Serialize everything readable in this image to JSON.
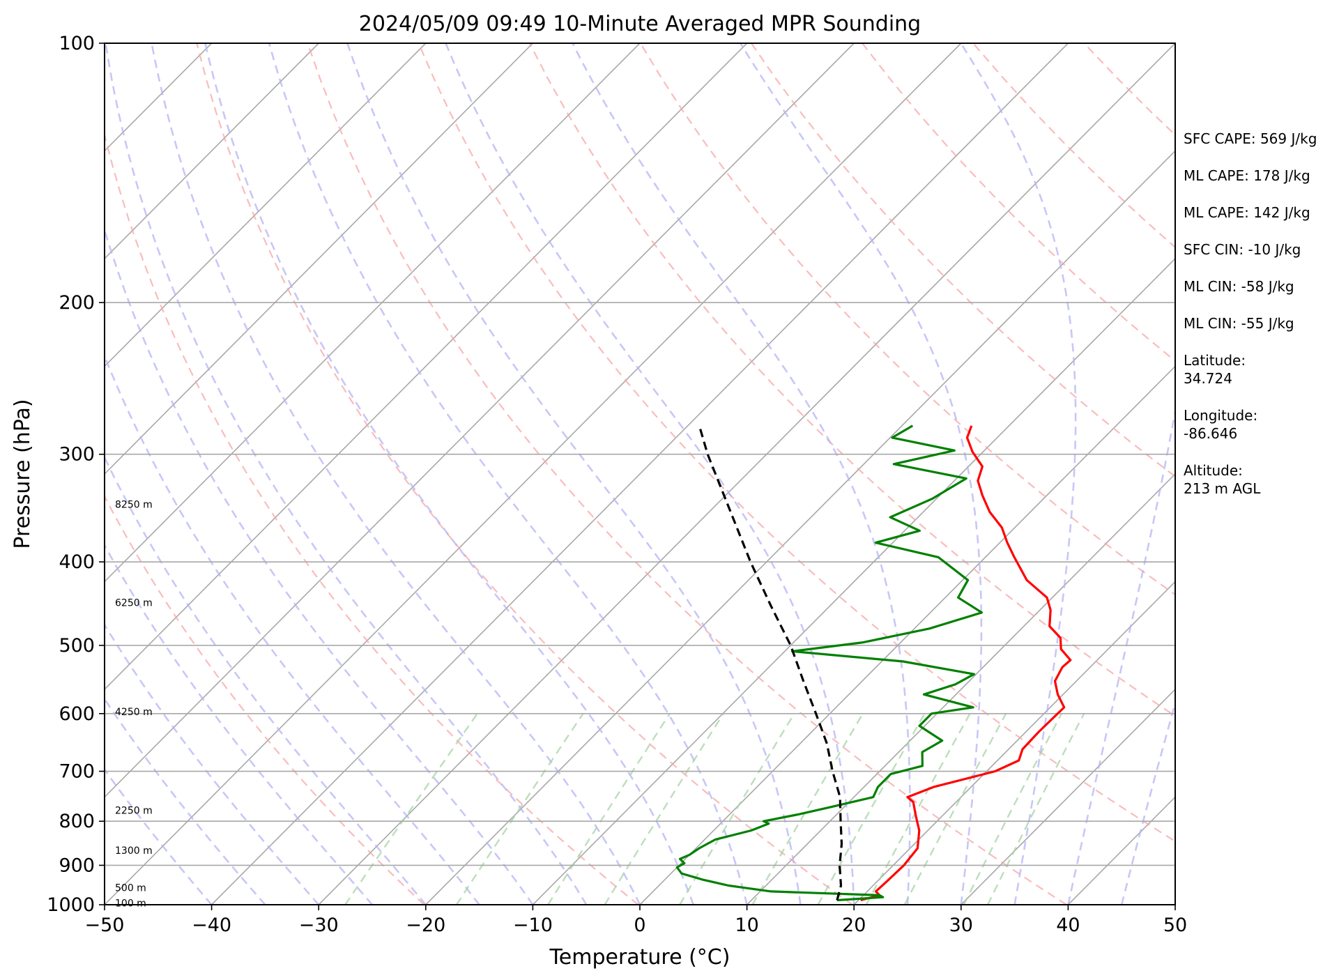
{
  "chart_data": {
    "type": "line",
    "subtype": "skew-t log-p",
    "title": "2024/05/09 09:49 10-Minute Averaged MPR Sounding",
    "xlabel": "Temperature (°C)",
    "ylabel": "Pressure (hPa)",
    "xlim": [
      -50,
      50
    ],
    "ylim": [
      1000,
      100
    ],
    "y_scale": "log",
    "x_ticks": [
      "−50",
      "−40",
      "−30",
      "−20",
      "−10",
      "0",
      "10",
      "20",
      "30",
      "40",
      "50"
    ],
    "y_ticks": [
      "100",
      "200",
      "300",
      "400",
      "500",
      "600",
      "700",
      "800",
      "900",
      "1000"
    ],
    "grid": true,
    "height_labels": [
      {
        "p": 995,
        "label": "100 m"
      },
      {
        "p": 955,
        "label": "500 m"
      },
      {
        "p": 865,
        "label": "1300 m"
      },
      {
        "p": 777,
        "label": "2250 m"
      },
      {
        "p": 597,
        "label": "4250 m"
      },
      {
        "p": 446,
        "label": "6250 m"
      },
      {
        "p": 343,
        "label": "8250 m"
      }
    ],
    "series": [
      {
        "color": "#ff0000",
        "points": [
          [
            988,
            20.2
          ],
          [
            975,
            21.5
          ],
          [
            965,
            20.8
          ],
          [
            940,
            20.9
          ],
          [
            900,
            21.0
          ],
          [
            860,
            20.7
          ],
          [
            820,
            19.2
          ],
          [
            790,
            17.6
          ],
          [
            760,
            16.0
          ],
          [
            750,
            15.0
          ],
          [
            730,
            16.5
          ],
          [
            700,
            20.8
          ],
          [
            680,
            22.0
          ],
          [
            660,
            21.3
          ],
          [
            630,
            21.2
          ],
          [
            590,
            21.3
          ],
          [
            570,
            19.5
          ],
          [
            550,
            18.0
          ],
          [
            530,
            17.4
          ],
          [
            520,
            17.5
          ],
          [
            505,
            15.6
          ],
          [
            490,
            14.5
          ],
          [
            475,
            12.4
          ],
          [
            455,
            11.0
          ],
          [
            440,
            9.5
          ],
          [
            420,
            6.0
          ],
          [
            395,
            2.7
          ],
          [
            380,
            0.7
          ],
          [
            365,
            -1.2
          ],
          [
            350,
            -3.8
          ],
          [
            335,
            -6.0
          ],
          [
            322,
            -7.8
          ],
          [
            310,
            -8.7
          ],
          [
            298,
            -11.0
          ],
          [
            287,
            -12.8
          ],
          [
            278,
            -13.5
          ]
        ]
      },
      {
        "color": "#008000",
        "points": [
          [
            988,
            18.0
          ],
          [
            980,
            22.0
          ],
          [
            975,
            21.5
          ],
          [
            965,
            11.0
          ],
          [
            955,
            8.0
          ],
          [
            950,
            6.5
          ],
          [
            935,
            3.5
          ],
          [
            920,
            1.0
          ],
          [
            905,
            0.0
          ],
          [
            895,
            0.3
          ],
          [
            885,
            -0.5
          ],
          [
            875,
            0.0
          ],
          [
            860,
            0.3
          ],
          [
            840,
            1.0
          ],
          [
            820,
            3.5
          ],
          [
            805,
            4.5
          ],
          [
            800,
            3.8
          ],
          [
            785,
            6.5
          ],
          [
            770,
            8.8
          ],
          [
            750,
            11.8
          ],
          [
            730,
            11.3
          ],
          [
            705,
            11.3
          ],
          [
            690,
            13.5
          ],
          [
            665,
            12.2
          ],
          [
            645,
            13.0
          ],
          [
            620,
            9.5
          ],
          [
            600,
            9.5
          ],
          [
            590,
            12.8
          ],
          [
            570,
            7.0
          ],
          [
            555,
            9.0
          ],
          [
            540,
            9.8
          ],
          [
            522,
            2.0
          ],
          [
            508,
            -9.3
          ],
          [
            496,
            -3.5
          ],
          [
            478,
            1.4
          ],
          [
            458,
            4.8
          ],
          [
            440,
            1.2
          ],
          [
            420,
            0.5
          ],
          [
            395,
            -4.4
          ],
          [
            380,
            -11.6
          ],
          [
            368,
            -8.6
          ],
          [
            355,
            -12.6
          ],
          [
            338,
            -10.4
          ],
          [
            320,
            -9.1
          ],
          [
            308,
            -17.2
          ],
          [
            297,
            -12.8
          ],
          [
            287,
            -19.8
          ],
          [
            278,
            -19.0
          ]
        ]
      },
      {
        "color": "#000000",
        "dashed": true,
        "points": [
          [
            988,
            18.0
          ],
          [
            950,
            17.0
          ],
          [
            900,
            15.0
          ],
          [
            850,
            13.2
          ],
          [
            800,
            11.0
          ],
          [
            750,
            8.7
          ],
          [
            700,
            5.6
          ],
          [
            650,
            2.5
          ],
          [
            600,
            -1.3
          ],
          [
            550,
            -5.5
          ],
          [
            500,
            -10.0
          ],
          [
            450,
            -15.5
          ],
          [
            400,
            -21.5
          ],
          [
            350,
            -28.0
          ],
          [
            300,
            -35.5
          ],
          [
            280,
            -38.6
          ]
        ]
      }
    ]
  },
  "indices": [
    [
      "SFC CAPE: 569 J/kg"
    ],
    [
      "ML CAPE: 178 J/kg"
    ],
    [
      "ML CAPE: 142 J/kg"
    ],
    [
      "SFC CIN: -10 J/kg"
    ],
    [
      "ML CIN: -58 J/kg"
    ],
    [
      "ML CIN: -55 J/kg"
    ],
    [
      "Latitude:",
      "34.724"
    ],
    [
      "Longitude:",
      "-86.646"
    ],
    [
      "Altitude:",
      "213 m AGL"
    ]
  ]
}
